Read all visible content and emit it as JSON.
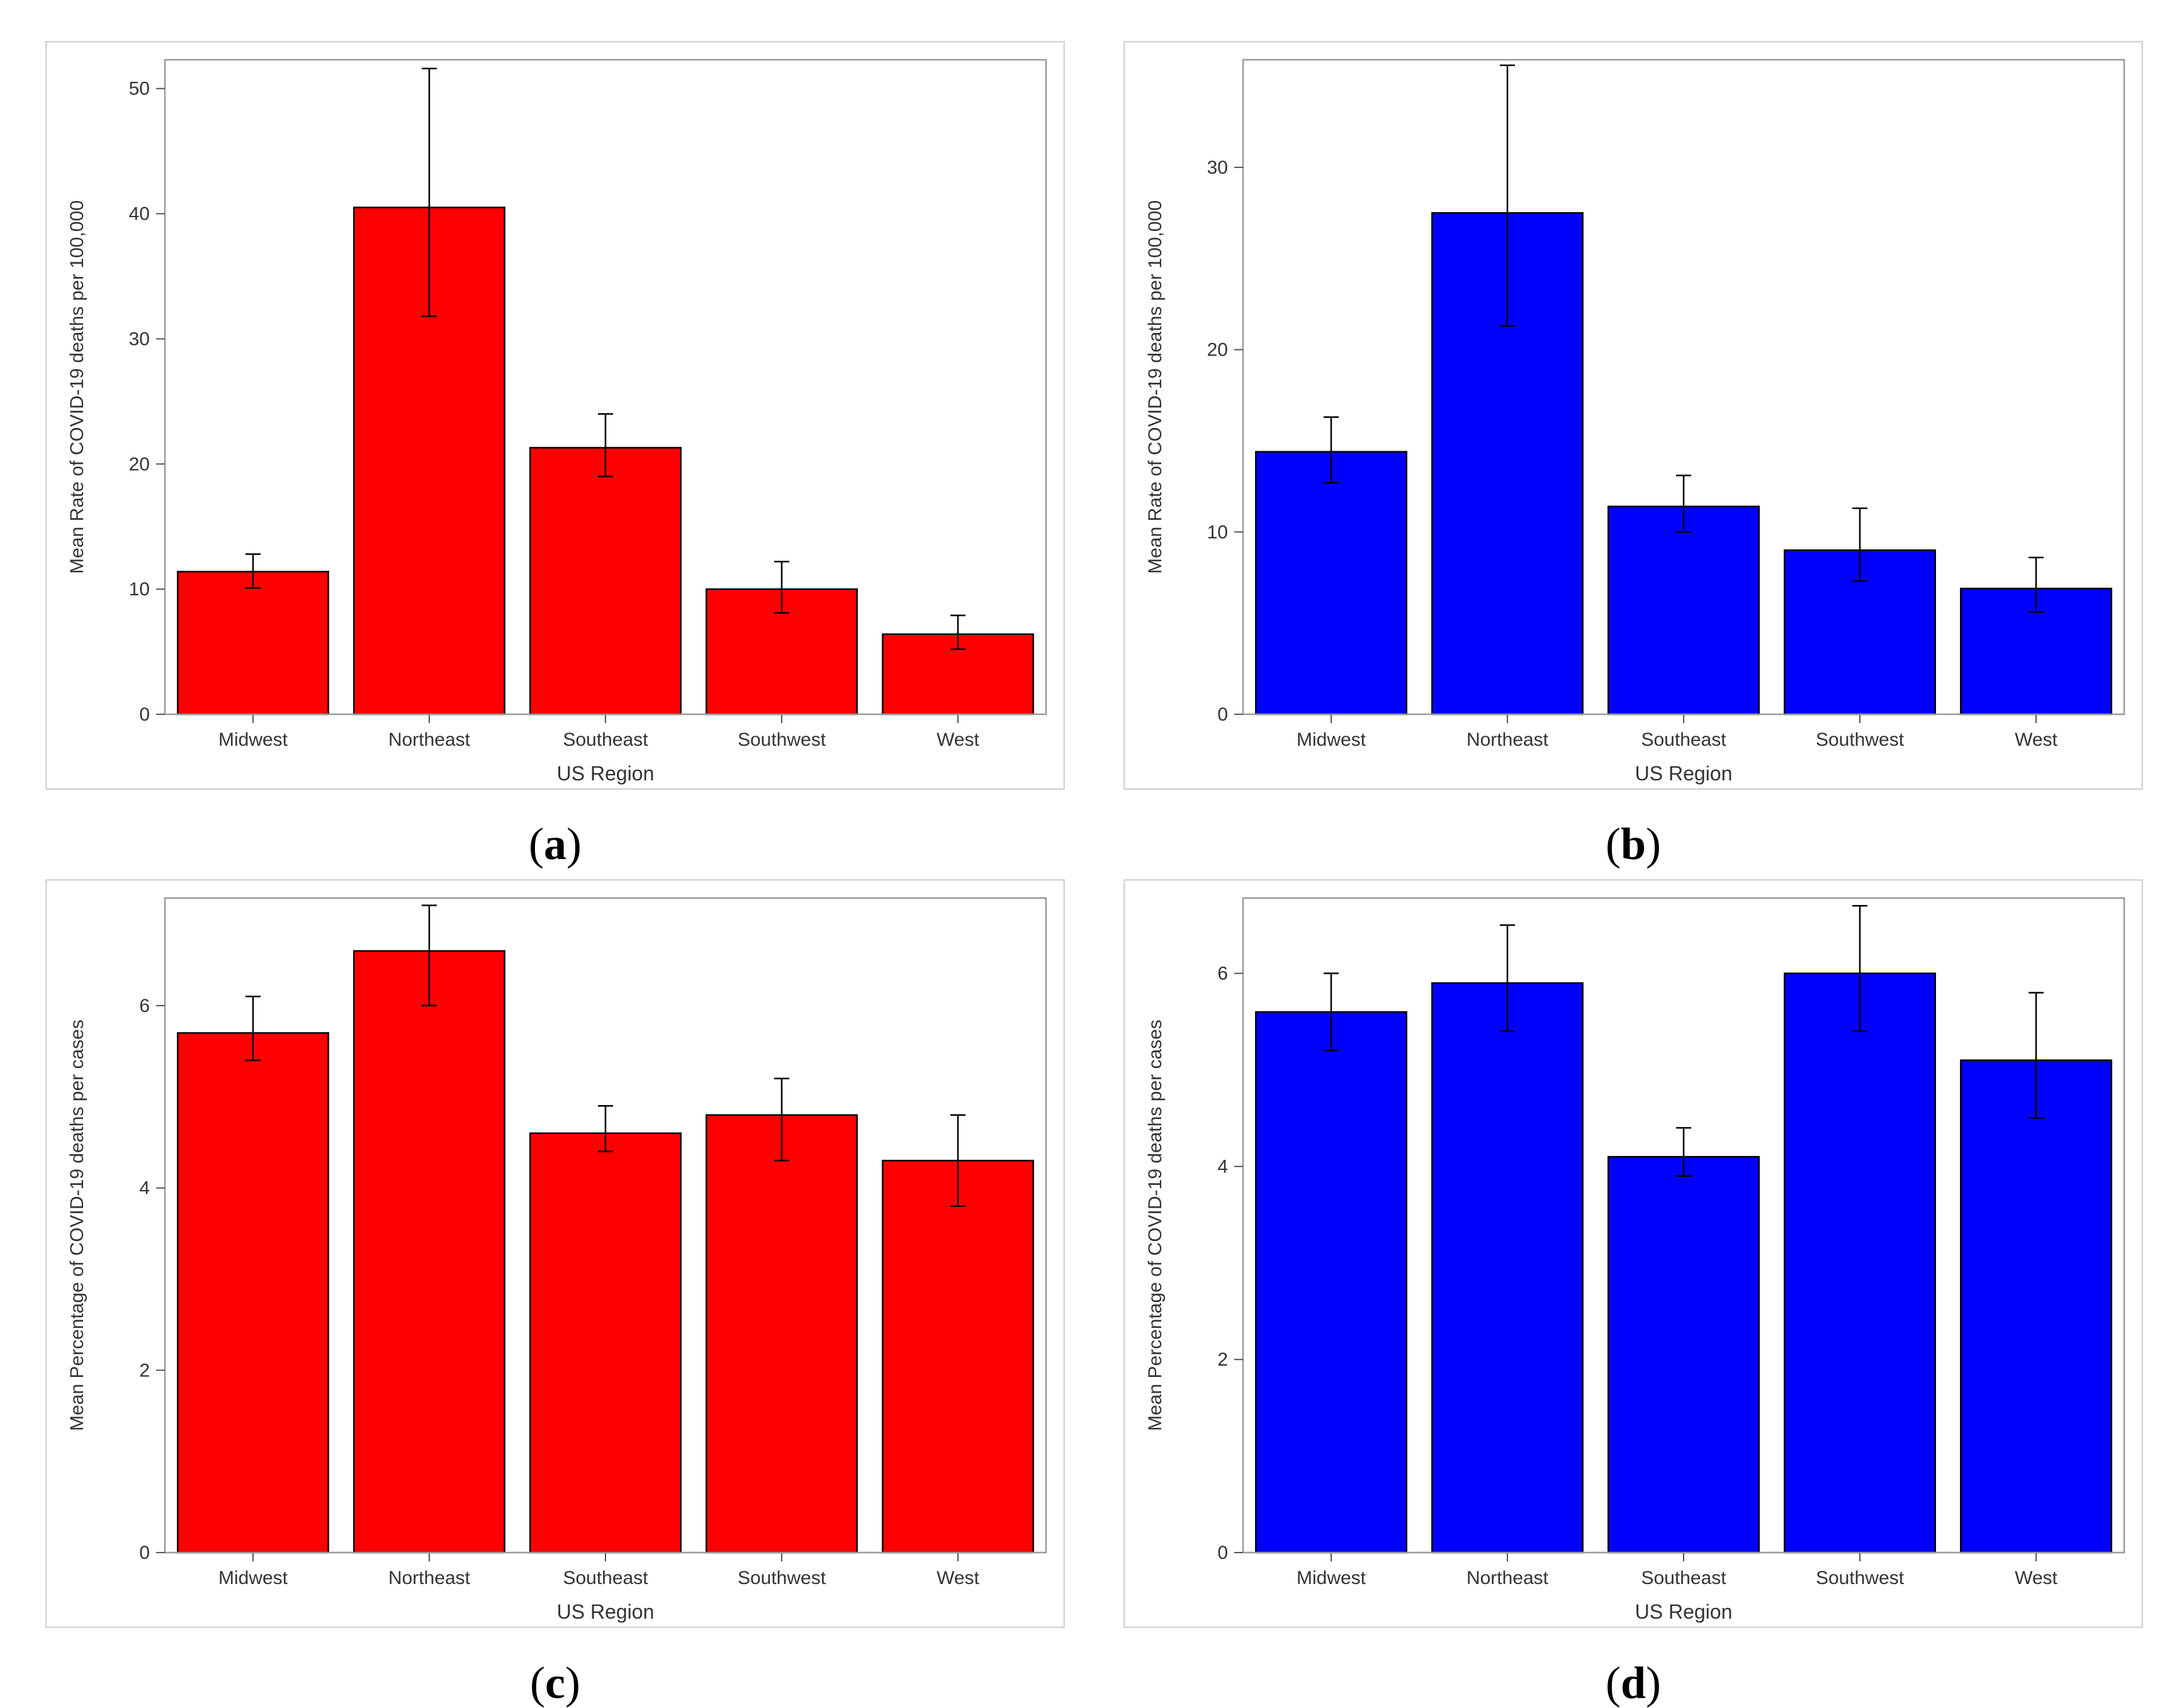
{
  "chart_data": [
    {
      "type": "bar",
      "id": "a",
      "caption_letter": "a",
      "color": "#ff0000",
      "categories": [
        "Midwest",
        "Northeast",
        "Southeast",
        "Southwest",
        "West"
      ],
      "values": [
        11.4,
        40.5,
        21.3,
        10.0,
        6.4
      ],
      "error_low": [
        10.1,
        31.8,
        19.0,
        8.1,
        5.2
      ],
      "error_high": [
        12.8,
        51.6,
        24.0,
        12.2,
        7.9
      ],
      "xlabel": "US Region",
      "ylabel": "Mean Rate of COVID-19 deaths per 100,000",
      "ylim": [
        0,
        52.3
      ],
      "yticks": [
        0,
        10,
        20,
        30,
        40,
        50
      ],
      "grid": false
    },
    {
      "type": "bar",
      "id": "b",
      "caption_letter": "b",
      "color": "#0000ff",
      "categories": [
        "Midwest",
        "Northeast",
        "Southeast",
        "Southwest",
        "West"
      ],
      "values": [
        14.4,
        27.5,
        11.4,
        9.0,
        6.9
      ],
      "error_low": [
        12.7,
        21.3,
        10.0,
        7.3,
        5.6
      ],
      "error_high": [
        16.3,
        35.6,
        13.1,
        11.3,
        8.6
      ],
      "xlabel": "US Region",
      "ylabel": "Mean Rate of COVID-19 deaths per 100,000",
      "ylim": [
        0,
        35.9
      ],
      "yticks": [
        0,
        10,
        20,
        30
      ],
      "grid": false
    },
    {
      "type": "bar",
      "id": "c",
      "caption_letter": "c",
      "color": "#ff0000",
      "categories": [
        "Midwest",
        "Northeast",
        "Southeast",
        "Southwest",
        "West"
      ],
      "values": [
        5.7,
        6.6,
        4.6,
        4.8,
        4.3
      ],
      "error_low": [
        5.4,
        6.0,
        4.4,
        4.3,
        3.8
      ],
      "error_high": [
        6.1,
        7.1,
        4.9,
        5.2,
        4.8
      ],
      "xlabel": "US Region",
      "ylabel": "Mean Percentage of COVID-19 deaths per cases",
      "ylim": [
        0,
        7.18
      ],
      "yticks": [
        0,
        2,
        4,
        6
      ],
      "grid": false
    },
    {
      "type": "bar",
      "id": "d",
      "caption_letter": "d",
      "color": "#0000ff",
      "categories": [
        "Midwest",
        "Northeast",
        "Southeast",
        "Southwest",
        "West"
      ],
      "values": [
        5.6,
        5.9,
        4.1,
        6.0,
        5.1
      ],
      "error_low": [
        5.2,
        5.4,
        3.9,
        5.4,
        4.5
      ],
      "error_high": [
        6.0,
        6.5,
        4.4,
        6.7,
        5.8
      ],
      "xlabel": "US Region",
      "ylabel": "Mean Percentage of COVID-19 deaths per cases",
      "ylim": [
        0,
        6.78
      ],
      "yticks": [
        0,
        2,
        4,
        6
      ],
      "grid": false
    }
  ]
}
